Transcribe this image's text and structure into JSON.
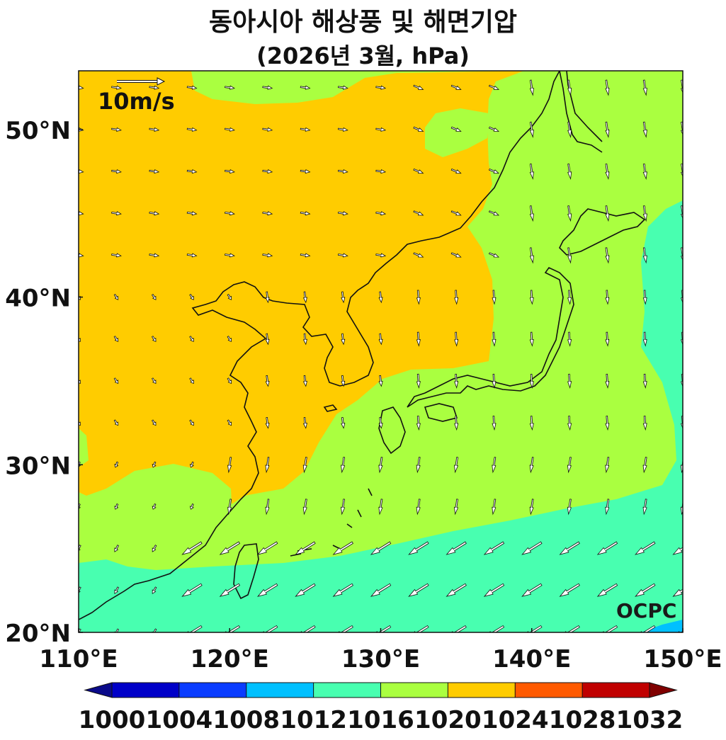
{
  "title": "동아시아 해상풍 및 해면기압",
  "subtitle": "(2026년 3월, hPa)",
  "reference_vector": {
    "label": "10m/s",
    "speed_ms": 10
  },
  "logo": "OCPC",
  "axes": {
    "lon_range": [
      110,
      150
    ],
    "lat_range": [
      20,
      53.5
    ],
    "x_ticks": [
      "110°E",
      "120°E",
      "130°E",
      "140°E",
      "150°E"
    ],
    "y_ticks": [
      "20°N",
      "30°N",
      "40°N",
      "50°N"
    ]
  },
  "colorbar": {
    "levels": [
      "1000",
      "1004",
      "1008",
      "1012",
      "1016",
      "1020",
      "1024",
      "1028",
      "1032"
    ],
    "colors": {
      "below_1000": "#0a0a8a",
      "1000-1004": "#0000c8",
      "1004-1008": "#0a3cff",
      "1008-1012": "#00c0ff",
      "1012-1016": "#48ffb0",
      "1016-1020": "#aaff40",
      "1020-1024": "#ffcc00",
      "1024-1028": "#ff5a00",
      "1028-1032": "#c00000",
      "above_1032": "#800000"
    }
  }
}
